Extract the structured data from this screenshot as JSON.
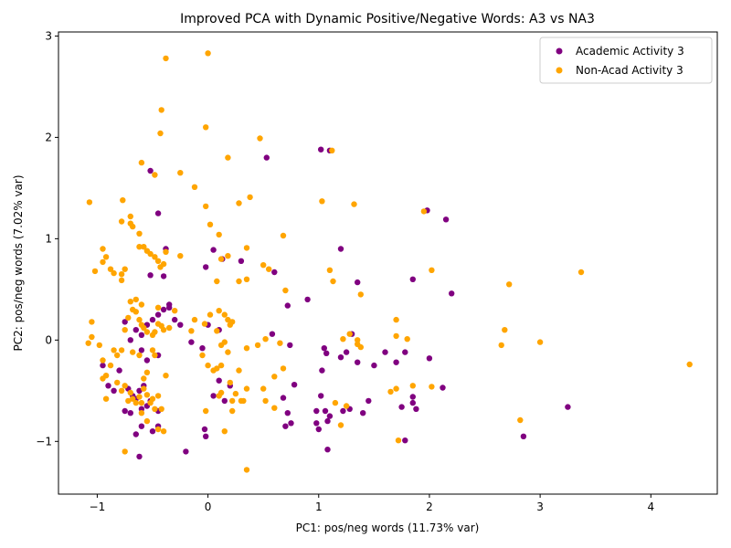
{
  "chart_data": {
    "type": "scatter",
    "title": "Improved PCA with Dynamic Positive/Negative Words: A3 vs NA3",
    "xlabel": "PC1: pos/neg words (11.73% var)",
    "ylabel": "PC2: pos/neg words (7.02% var)",
    "xlim": [
      -1.35,
      4.6
    ],
    "ylim": [
      -1.52,
      3.04
    ],
    "xticks": [
      -1,
      0,
      1,
      2,
      3,
      4
    ],
    "yticks": [
      -1,
      0,
      1,
      2,
      3
    ],
    "grid": false,
    "legend_position": "top-right",
    "series": [
      {
        "name": "Academic Activity 3",
        "color": "#800080",
        "points": [
          [
            -0.62,
            -1.15
          ],
          [
            -0.2,
            -1.1
          ],
          [
            -0.65,
            -0.93
          ],
          [
            -0.5,
            -0.9
          ],
          [
            -0.45,
            -0.85
          ],
          [
            -0.6,
            -0.85
          ],
          [
            -0.7,
            -0.72
          ],
          [
            -0.75,
            -0.7
          ],
          [
            -0.6,
            -0.68
          ],
          [
            -0.55,
            -0.65
          ],
          [
            -0.52,
            -0.6
          ],
          [
            -0.45,
            -0.7
          ],
          [
            -0.68,
            -0.55
          ],
          [
            -0.62,
            -0.5
          ],
          [
            -0.58,
            -0.45
          ],
          [
            -0.72,
            -0.48
          ],
          [
            -0.65,
            -0.58
          ],
          [
            -0.85,
            -0.5
          ],
          [
            -0.9,
            -0.45
          ],
          [
            -0.95,
            -0.25
          ],
          [
            -0.8,
            -0.3
          ],
          [
            -0.55,
            -0.2
          ],
          [
            -0.45,
            -0.15
          ],
          [
            -0.6,
            -0.1
          ],
          [
            -0.7,
            0.0
          ],
          [
            -0.65,
            0.1
          ],
          [
            -0.6,
            0.05
          ],
          [
            -0.55,
            0.15
          ],
          [
            -0.5,
            0.2
          ],
          [
            -0.45,
            0.25
          ],
          [
            -0.4,
            0.3
          ],
          [
            -0.35,
            0.35
          ],
          [
            -0.3,
            0.2
          ],
          [
            -0.25,
            0.15
          ],
          [
            -0.15,
            -0.02
          ],
          [
            -0.05,
            -0.08
          ],
          [
            0.0,
            0.15
          ],
          [
            0.1,
            0.1
          ],
          [
            0.05,
            -0.55
          ],
          [
            0.1,
            -0.4
          ],
          [
            0.15,
            -0.6
          ],
          [
            0.2,
            -0.45
          ],
          [
            -0.02,
            -0.95
          ],
          [
            -0.03,
            -0.88
          ],
          [
            0.05,
            0.89
          ],
          [
            0.3,
            0.78
          ],
          [
            0.13,
            0.8
          ],
          [
            -0.02,
            0.72
          ],
          [
            -0.52,
            1.67
          ],
          [
            -0.45,
            1.25
          ],
          [
            -0.38,
            0.9
          ],
          [
            -0.4,
            0.63
          ],
          [
            -0.52,
            0.64
          ],
          [
            0.53,
            1.8
          ],
          [
            0.6,
            0.67
          ],
          [
            0.58,
            0.06
          ],
          [
            0.72,
            0.34
          ],
          [
            0.9,
            0.4
          ],
          [
            0.74,
            -0.05
          ],
          [
            0.68,
            -0.57
          ],
          [
            0.72,
            -0.72
          ],
          [
            0.7,
            -0.85
          ],
          [
            0.78,
            -0.44
          ],
          [
            0.75,
            -0.82
          ],
          [
            0.98,
            -0.7
          ],
          [
            0.98,
            -0.82
          ],
          [
            1.0,
            -0.88
          ],
          [
            1.02,
            -0.55
          ],
          [
            1.03,
            -0.3
          ],
          [
            1.05,
            -0.08
          ],
          [
            1.07,
            -0.13
          ],
          [
            1.08,
            -0.8
          ],
          [
            1.06,
            -0.7
          ],
          [
            1.08,
            -1.08
          ],
          [
            1.1,
            -0.75
          ],
          [
            1.2,
            -0.17
          ],
          [
            1.2,
            0.9
          ],
          [
            1.22,
            -0.7
          ],
          [
            1.25,
            -0.12
          ],
          [
            1.28,
            -0.68
          ],
          [
            1.3,
            0.06
          ],
          [
            1.35,
            0.57
          ],
          [
            1.35,
            -0.22
          ],
          [
            1.4,
            -0.72
          ],
          [
            1.45,
            -0.6
          ],
          [
            1.5,
            -0.25
          ],
          [
            1.6,
            -0.12
          ],
          [
            1.7,
            -0.22
          ],
          [
            1.75,
            -0.66
          ],
          [
            1.78,
            -0.99
          ],
          [
            1.78,
            -0.12
          ],
          [
            1.85,
            -0.56
          ],
          [
            1.85,
            -0.62
          ],
          [
            1.88,
            -0.68
          ],
          [
            2.0,
            -0.18
          ],
          [
            2.12,
            -0.47
          ],
          [
            2.15,
            1.19
          ],
          [
            2.2,
            0.46
          ],
          [
            1.85,
            0.6
          ],
          [
            1.98,
            1.28
          ],
          [
            2.85,
            -0.95
          ],
          [
            3.25,
            -0.66
          ],
          [
            1.02,
            1.88
          ],
          [
            1.1,
            1.87
          ],
          [
            -0.35,
            0.32
          ],
          [
            -0.75,
            0.18
          ]
        ]
      },
      {
        "name": "Non-Acad Activity 3",
        "color": "#ffa500",
        "points": [
          [
            0.0,
            2.83
          ],
          [
            -0.38,
            2.78
          ],
          [
            -0.42,
            2.27
          ],
          [
            -0.43,
            2.04
          ],
          [
            0.47,
            1.99
          ],
          [
            -0.6,
            1.75
          ],
          [
            -0.02,
            2.1
          ],
          [
            0.18,
            1.8
          ],
          [
            -0.48,
            1.63
          ],
          [
            -0.25,
            1.65
          ],
          [
            -0.12,
            1.51
          ],
          [
            0.38,
            1.41
          ],
          [
            0.28,
            1.35
          ],
          [
            -1.07,
            1.36
          ],
          [
            -0.77,
            1.38
          ],
          [
            -0.7,
            1.22
          ],
          [
            -0.7,
            1.15
          ],
          [
            -0.78,
            1.17
          ],
          [
            -0.68,
            1.12
          ],
          [
            -0.02,
            1.32
          ],
          [
            0.02,
            1.14
          ],
          [
            0.1,
            1.04
          ],
          [
            -0.62,
            1.05
          ],
          [
            -0.95,
            0.9
          ],
          [
            -0.92,
            0.82
          ],
          [
            -0.95,
            0.77
          ],
          [
            -1.02,
            0.68
          ],
          [
            -0.88,
            0.7
          ],
          [
            -0.85,
            0.66
          ],
          [
            -0.78,
            0.65
          ],
          [
            -0.75,
            0.7
          ],
          [
            -0.78,
            0.59
          ],
          [
            -0.62,
            0.92
          ],
          [
            -0.55,
            0.88
          ],
          [
            -0.52,
            0.85
          ],
          [
            -0.48,
            0.82
          ],
          [
            -0.45,
            0.78
          ],
          [
            -0.43,
            0.72
          ],
          [
            -0.4,
            0.75
          ],
          [
            -0.38,
            0.87
          ],
          [
            -0.25,
            0.83
          ],
          [
            0.35,
            0.91
          ],
          [
            0.12,
            0.8
          ],
          [
            0.18,
            0.83
          ],
          [
            0.08,
            0.58
          ],
          [
            0.28,
            0.58
          ],
          [
            0.35,
            0.6
          ],
          [
            0.5,
            0.74
          ],
          [
            0.55,
            0.7
          ],
          [
            0.68,
            1.03
          ],
          [
            0.7,
            0.49
          ],
          [
            1.03,
            1.37
          ],
          [
            1.12,
            1.87
          ],
          [
            1.1,
            0.69
          ],
          [
            1.13,
            0.58
          ],
          [
            1.32,
            1.34
          ],
          [
            1.38,
            0.45
          ],
          [
            1.7,
            0.2
          ],
          [
            1.95,
            1.27
          ],
          [
            2.02,
            0.69
          ],
          [
            2.72,
            0.55
          ],
          [
            3.37,
            0.67
          ],
          [
            2.68,
            0.1
          ],
          [
            2.65,
            -0.05
          ],
          [
            3.0,
            -0.02
          ],
          [
            4.35,
            -0.24
          ],
          [
            2.82,
            -0.79
          ],
          [
            2.02,
            -0.46
          ],
          [
            1.85,
            -0.45
          ],
          [
            1.72,
            -0.99
          ],
          [
            1.7,
            -0.48
          ],
          [
            1.65,
            -0.51
          ],
          [
            1.8,
            0.01
          ],
          [
            1.7,
            0.04
          ],
          [
            1.38,
            -0.07
          ],
          [
            1.35,
            -0.04
          ],
          [
            1.28,
            0.06
          ],
          [
            1.35,
            0.0
          ],
          [
            1.22,
            0.01
          ],
          [
            1.2,
            -0.84
          ],
          [
            1.25,
            -0.65
          ],
          [
            1.15,
            -0.62
          ],
          [
            0.68,
            -0.28
          ],
          [
            0.65,
            -0.03
          ],
          [
            0.6,
            -0.36
          ],
          [
            0.6,
            -0.67
          ],
          [
            0.52,
            -0.6
          ],
          [
            0.5,
            -0.48
          ],
          [
            0.35,
            -0.48
          ],
          [
            0.35,
            -0.08
          ],
          [
            0.32,
            -0.6
          ],
          [
            0.35,
            -1.28
          ],
          [
            0.3,
            -0.6
          ],
          [
            0.18,
            -0.12
          ],
          [
            0.15,
            -0.02
          ],
          [
            0.12,
            -0.05
          ],
          [
            0.12,
            -0.25
          ],
          [
            0.08,
            -0.28
          ],
          [
            0.1,
            -0.55
          ],
          [
            0.12,
            -0.52
          ],
          [
            0.05,
            -0.3
          ],
          [
            0.0,
            -0.25
          ],
          [
            -0.05,
            -0.15
          ],
          [
            -0.03,
            0.16
          ],
          [
            0.02,
            0.25
          ],
          [
            0.08,
            0.09
          ],
          [
            0.1,
            0.29
          ],
          [
            0.15,
            0.25
          ],
          [
            0.18,
            0.2
          ],
          [
            0.22,
            0.18
          ],
          [
            0.2,
            0.15
          ],
          [
            -0.12,
            0.2
          ],
          [
            -0.15,
            0.09
          ],
          [
            -0.3,
            0.29
          ],
          [
            -0.35,
            0.12
          ],
          [
            -0.4,
            0.1
          ],
          [
            -0.42,
            0.14
          ],
          [
            -0.45,
            0.16
          ],
          [
            -0.48,
            0.08
          ],
          [
            -0.5,
            0.05
          ],
          [
            -0.55,
            0.08
          ],
          [
            -0.58,
            0.12
          ],
          [
            -0.6,
            0.15
          ],
          [
            -0.62,
            0.2
          ],
          [
            -0.65,
            0.28
          ],
          [
            -0.68,
            0.3
          ],
          [
            -0.7,
            0.38
          ],
          [
            -0.65,
            0.4
          ],
          [
            -0.6,
            0.35
          ],
          [
            -0.72,
            0.22
          ],
          [
            -0.75,
            0.1
          ],
          [
            -0.78,
            -0.1
          ],
          [
            -0.82,
            -0.15
          ],
          [
            -0.85,
            -0.1
          ],
          [
            -0.88,
            -0.25
          ],
          [
            -0.92,
            -0.35
          ],
          [
            -0.95,
            -0.2
          ],
          [
            -1.05,
            0.03
          ],
          [
            -1.05,
            0.18
          ],
          [
            -1.08,
            -0.03
          ],
          [
            -0.98,
            -0.05
          ],
          [
            -0.95,
            -0.38
          ],
          [
            -0.92,
            -0.58
          ],
          [
            -0.82,
            -0.42
          ],
          [
            -0.78,
            -0.5
          ],
          [
            -0.75,
            -0.45
          ],
          [
            -0.72,
            -0.6
          ],
          [
            -0.7,
            -0.52
          ],
          [
            -0.68,
            -0.58
          ],
          [
            -0.65,
            -0.62
          ],
          [
            -0.62,
            -0.56
          ],
          [
            -0.6,
            -0.62
          ],
          [
            -0.58,
            -0.48
          ],
          [
            -0.55,
            -0.54
          ],
          [
            -0.52,
            -0.62
          ],
          [
            -0.5,
            -0.58
          ],
          [
            -0.48,
            -0.68
          ],
          [
            -0.45,
            -0.55
          ],
          [
            -0.42,
            -0.68
          ],
          [
            -0.4,
            -0.9
          ],
          [
            -0.38,
            -0.35
          ],
          [
            -0.55,
            -0.32
          ],
          [
            -0.58,
            -0.38
          ],
          [
            -0.68,
            -0.12
          ],
          [
            -0.62,
            -0.15
          ],
          [
            -0.5,
            -0.1
          ],
          [
            -0.48,
            -0.15
          ],
          [
            -0.75,
            -1.1
          ],
          [
            -0.55,
            -0.8
          ],
          [
            -0.45,
            -0.88
          ],
          [
            -0.6,
            -0.72
          ],
          [
            0.15,
            -0.9
          ],
          [
            0.22,
            -0.6
          ],
          [
            0.25,
            -0.53
          ],
          [
            0.22,
            -0.7
          ],
          [
            -0.02,
            -0.7
          ],
          [
            0.45,
            -0.05
          ],
          [
            0.52,
            0.01
          ],
          [
            0.28,
            -0.3
          ],
          [
            0.2,
            -0.42
          ],
          [
            -0.58,
            0.92
          ],
          [
            -0.45,
            0.32
          ]
        ]
      }
    ]
  }
}
